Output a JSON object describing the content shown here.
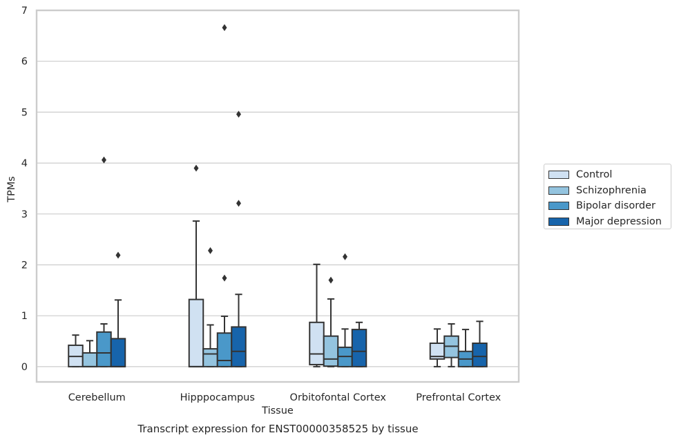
{
  "caption": "Transcript expression for ENST00000358525 by tissue",
  "chart_data": {
    "type": "box",
    "xlabel": "Tissue",
    "ylabel": "TPMs",
    "ylim": [
      -0.3,
      7
    ],
    "yticks": [
      0,
      1,
      2,
      3,
      4,
      5,
      6,
      7
    ],
    "grid": "horizontal",
    "legend_position": "right",
    "categories": [
      "Cerebellum",
      "Hipppocampus",
      "Orbitofontal Cortex",
      "Prefrontal Cortex"
    ],
    "series": [
      {
        "name": "Control",
        "color": "#d0e1f2",
        "boxes": [
          {
            "min": 0,
            "q1": 0,
            "median": 0.2,
            "q3": 0.42,
            "max": 0.62,
            "outliers": []
          },
          {
            "min": 0,
            "q1": 0,
            "median": 0,
            "q3": 1.32,
            "max": 2.86,
            "outliers": [
              3.9
            ]
          },
          {
            "min": 0,
            "q1": 0.04,
            "median": 0.25,
            "q3": 0.87,
            "max": 2.01,
            "outliers": []
          },
          {
            "min": 0,
            "q1": 0.15,
            "median": 0.2,
            "q3": 0.46,
            "max": 0.74,
            "outliers": []
          }
        ]
      },
      {
        "name": "Schizophrenia",
        "color": "#94c4df",
        "boxes": [
          {
            "min": 0,
            "q1": 0,
            "median": 0,
            "q3": 0.27,
            "max": 0.51,
            "outliers": []
          },
          {
            "min": 0,
            "q1": 0,
            "median": 0.25,
            "q3": 0.35,
            "max": 0.82,
            "outliers": [
              2.28
            ]
          },
          {
            "min": 0,
            "q1": 0.01,
            "median": 0.15,
            "q3": 0.6,
            "max": 1.33,
            "outliers": [
              1.7
            ]
          },
          {
            "min": 0,
            "q1": 0.18,
            "median": 0.4,
            "q3": 0.6,
            "max": 0.84,
            "outliers": []
          }
        ]
      },
      {
        "name": "Bipolar disorder",
        "color": "#4a98c9",
        "boxes": [
          {
            "min": 0,
            "q1": 0,
            "median": 0.27,
            "q3": 0.68,
            "max": 0.84,
            "outliers": [
              4.06
            ]
          },
          {
            "min": 0,
            "q1": 0,
            "median": 0.12,
            "q3": 0.66,
            "max": 0.99,
            "outliers": [
              1.74,
              6.66
            ]
          },
          {
            "min": 0,
            "q1": 0,
            "median": 0.2,
            "q3": 0.38,
            "max": 0.74,
            "outliers": [
              2.16
            ]
          },
          {
            "min": 0,
            "q1": 0,
            "median": 0.15,
            "q3": 0.3,
            "max": 0.73,
            "outliers": []
          }
        ]
      },
      {
        "name": "Major depression",
        "color": "#1764ab",
        "boxes": [
          {
            "min": 0,
            "q1": 0,
            "median": 0,
            "q3": 0.55,
            "max": 1.31,
            "outliers": [
              2.19
            ]
          },
          {
            "min": 0,
            "q1": 0,
            "median": 0.3,
            "q3": 0.78,
            "max": 1.42,
            "outliers": [
              3.21,
              4.96
            ]
          },
          {
            "min": 0,
            "q1": 0,
            "median": 0.3,
            "q3": 0.73,
            "max": 0.87,
            "outliers": []
          },
          {
            "min": 0,
            "q1": 0,
            "median": 0.2,
            "q3": 0.46,
            "max": 0.89,
            "outliers": []
          }
        ]
      }
    ]
  }
}
